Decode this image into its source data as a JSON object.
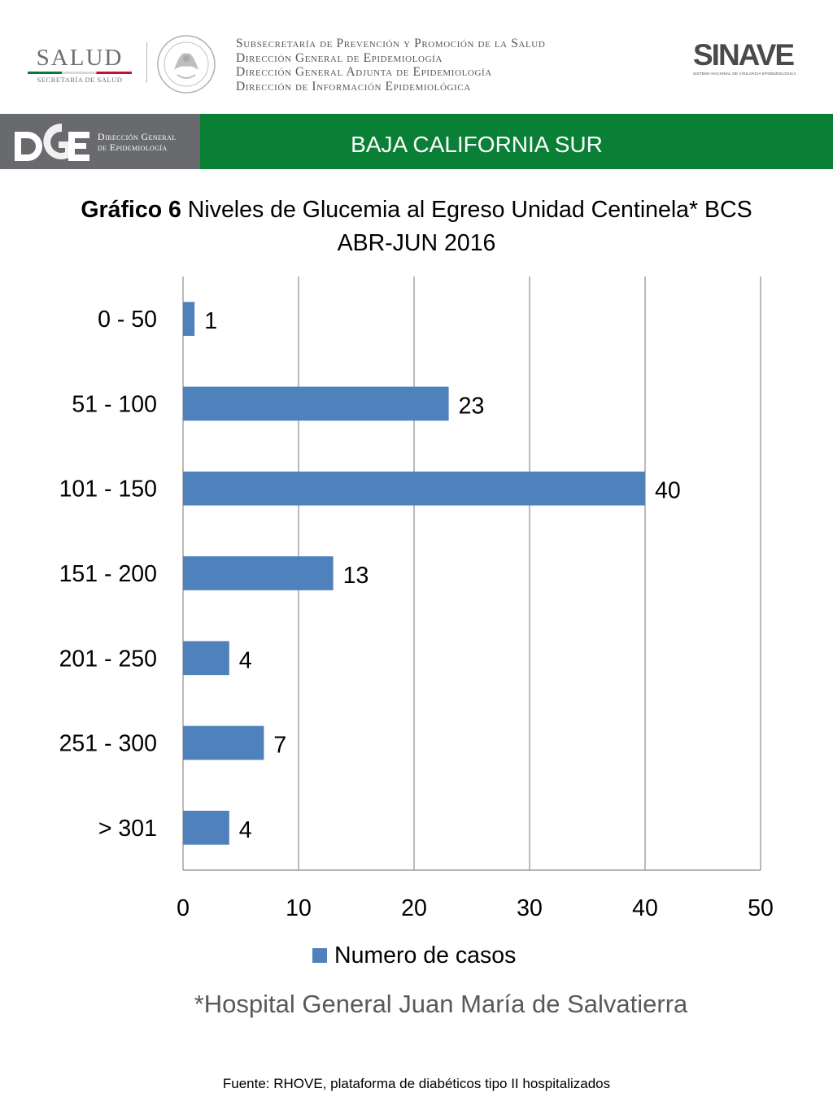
{
  "header": {
    "salud_word": "SALUD",
    "salud_sub": "SECRETARÍA DE SALUD",
    "sub_lines": [
      "Subsecretaría de Prevención y Promoción de la Salud",
      "Dirección General de Epidemiología",
      "Dirección General Adjunta de Epidemiología",
      "Dirección de Información Epidemiológica"
    ],
    "sinave_mark": "SINAVE",
    "sinave_sub": "SISTEMA NACIONAL DE VIGILANCIA EPIDEMIOLÓGICA"
  },
  "banner": {
    "dge_line1": "Dirección General",
    "dge_line2": "de Epidemiología",
    "state": "BAJA CALIFORNIA SUR",
    "grey_color": "#696a6d",
    "green_color": "#0a7f36"
  },
  "title": {
    "bold": "Gráfico 6",
    "rest": " Niveles de Glucemia al Egreso  Unidad Centinela* BCS",
    "line2": "ABR-JUN 2016"
  },
  "chart_data": {
    "type": "bar",
    "orientation": "horizontal",
    "categories": [
      "0 - 50",
      "51 - 100",
      "101 - 150",
      "151 - 200",
      "201 - 250",
      "251 - 300",
      "> 301"
    ],
    "series": [
      {
        "name": "Numero de casos",
        "values": [
          1,
          23,
          40,
          13,
          4,
          7,
          4
        ],
        "color": "#4f81bd"
      }
    ],
    "xlim": [
      0,
      50
    ],
    "xticks": [
      0,
      10,
      20,
      30,
      40,
      50
    ],
    "grid": "vertical",
    "legend": "bottom",
    "data_labels": true
  },
  "legend_label": "Numero de casos",
  "footnote": "*Hospital General Juan María de Salvatierra",
  "source": "Fuente: RHOVE, plataforma de diabéticos tipo II hospitalizados"
}
